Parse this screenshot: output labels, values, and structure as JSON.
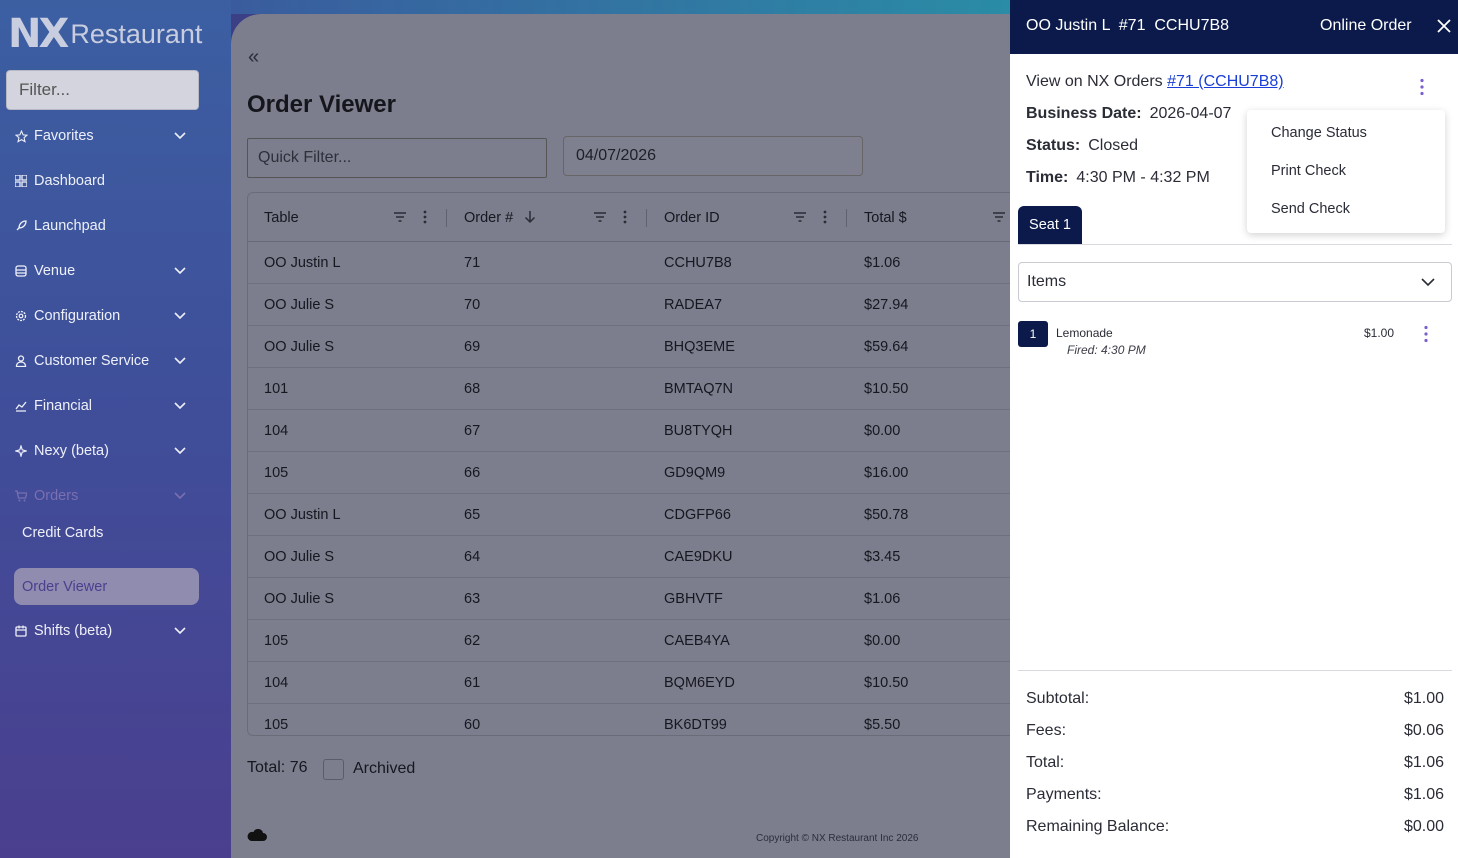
{
  "sidebar": {
    "logo_nx": "NX",
    "logo_text": "Restaurant",
    "filter_placeholder": "Filter...",
    "items": [
      {
        "label": "Favorites",
        "icon": "star-icon"
      },
      {
        "label": "Dashboard",
        "icon": "dashboard-icon"
      },
      {
        "label": "Launchpad",
        "icon": "rocket-icon"
      },
      {
        "label": "Venue",
        "icon": "venue-icon"
      },
      {
        "label": "Configuration",
        "icon": "gear-icon"
      },
      {
        "label": "Customer Service",
        "icon": "person-icon"
      },
      {
        "label": "Financial",
        "icon": "chart-icon"
      },
      {
        "label": "Nexy (beta)",
        "icon": "sparkle-icon"
      },
      {
        "label": "Orders",
        "icon": "cart-icon"
      }
    ],
    "sub_items": [
      "Credit Cards",
      "Order Viewer"
    ],
    "last_item": {
      "label": "Shifts (beta)",
      "icon": "calendar-icon"
    }
  },
  "main": {
    "title": "Order Viewer",
    "quick_filter_placeholder": "Quick Filter...",
    "date": "04/07/2026",
    "columns": [
      "Table",
      "Order #",
      "Order ID",
      "Total $"
    ],
    "rows": [
      [
        "OO Justin L",
        "71",
        "CCHU7B8",
        "$1.06"
      ],
      [
        "OO Julie S",
        "70",
        "RADEA7",
        "$27.94"
      ],
      [
        "OO Julie S",
        "69",
        "BHQ3EME",
        "$59.64"
      ],
      [
        "101",
        "68",
        "BMTAQ7N",
        "$10.50"
      ],
      [
        "104",
        "67",
        "BU8TYQH",
        "$0.00"
      ],
      [
        "105",
        "66",
        "GD9QM9",
        "$16.00"
      ],
      [
        "OO Justin L",
        "65",
        "CDGFP66",
        "$50.78"
      ],
      [
        "OO Julie S",
        "64",
        "CAE9DKU",
        "$3.45"
      ],
      [
        "OO Julie S",
        "63",
        "GBHVTF",
        "$1.06"
      ],
      [
        "105",
        "62",
        "CAEB4YA",
        "$0.00"
      ],
      [
        "104",
        "61",
        "BQM6EYD",
        "$10.50"
      ],
      [
        "105",
        "60",
        "BK6DT99",
        "$5.50"
      ]
    ],
    "total_label": "Total: 76",
    "archived_label": "Archived",
    "copyright": "Copyright © NX Restaurant Inc 2026"
  },
  "drawer": {
    "title": "OO Justin L  #71  CCHU7B8",
    "order_type": "Online Order",
    "view_prefix": "View on NX Orders",
    "view_link": "#71 (CCHU7B8)",
    "business_date_label": "Business Date:",
    "business_date": "2026-04-07",
    "status_label": "Status:",
    "status": "Closed",
    "time_label": "Time:",
    "time": "4:30 PM - 4:32 PM",
    "menu": [
      "Change Status",
      "Print Check",
      "Send Check"
    ],
    "seat_tab": "Seat 1",
    "items_label": "Items",
    "item": {
      "qty": "1",
      "name": "Lemonade",
      "fired": "Fired: 4:30 PM",
      "price": "$1.00"
    },
    "summary": [
      {
        "label": "Subtotal:",
        "value": "$1.00"
      },
      {
        "label": "Fees:",
        "value": "$0.06"
      },
      {
        "label": "Total:",
        "value": "$1.06"
      },
      {
        "label": "Payments:",
        "value": "$1.06"
      },
      {
        "label": "Remaining Balance:",
        "value": "$0.00"
      }
    ]
  }
}
